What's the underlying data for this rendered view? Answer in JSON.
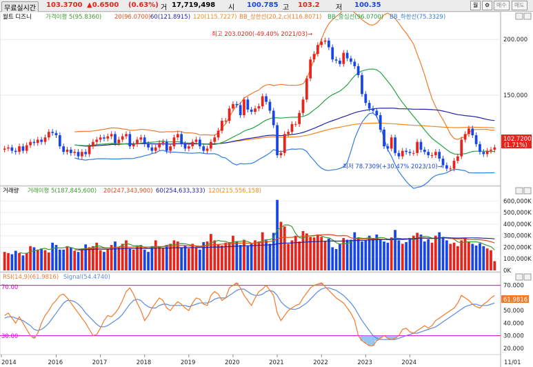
{
  "header": {
    "mode": "무료실시간",
    "price": "103.3700",
    "change": "▲0.6500",
    "change_pct": "(0.63%)",
    "vol_label": "거",
    "volume": "17,719,498",
    "open_label": "시",
    "open": "100.785",
    "high_label": "고",
    "high": "103.2",
    "low_label": "저",
    "low": "100.35",
    "btn_period": "월",
    "btn_gear": "⚙",
    "btn_buy": "매수",
    "btn_sell": "매도"
  },
  "price_panel": {
    "name": "월트 디즈니",
    "ma5": "가격이평 5(95.8360)",
    "ma20": "20(96.0700)",
    "ma60": "60(121.8915)",
    "ma120": "120(115.7227)",
    "bb_up": "BB_상한선(20,2,c)(116.8071)",
    "bb_mid": "BB_중심선(96.0700)",
    "bb_low": "BB_하한선(75.3329)",
    "high_note": "최고 203.0200(-49.40% 2021/03)→",
    "low_note": "최저 78.7309(+30.47% 2023/10)→",
    "last_tag": "102.7200",
    "last_tag_pct": "(1.71%)",
    "y_ticks": [
      {
        "v": 200,
        "t": "200.000"
      },
      {
        "v": 150,
        "t": "150.000"
      }
    ]
  },
  "volume_panel": {
    "title": "거래량",
    "ma5": "거래이평 5(187,845,600)",
    "ma20": "20(247,343,900)",
    "ma60": "60(254,633,333)",
    "ma120": "120(215,556,158)",
    "y_ticks": [
      {
        "v": 600,
        "t": "600,000K"
      },
      {
        "v": 500,
        "t": "500,000K"
      },
      {
        "v": 400,
        "t": "400,000K"
      },
      {
        "v": 300,
        "t": "300,000K"
      },
      {
        "v": 200,
        "t": "200,000K"
      },
      {
        "v": 100,
        "t": "100,000K"
      },
      {
        "v": 0,
        "t": "0K"
      }
    ]
  },
  "rsi_panel": {
    "rsi": "RSI(14,9)(61.9816)",
    "signal": "Signal(54.4740)",
    "level70": "70.00",
    "level30": "30.00",
    "last_tag": "61.9816",
    "y_ticks": [
      {
        "v": 70,
        "t": "70.000"
      },
      {
        "v": 60,
        "t": "60.000"
      },
      {
        "v": 50,
        "t": "50.000"
      },
      {
        "v": 40,
        "t": "40.000"
      },
      {
        "v": 30,
        "t": "30.000"
      },
      {
        "v": 20,
        "t": "20.000"
      }
    ]
  },
  "x_labels": [
    {
      "x": 2014,
      "t": "2014"
    },
    {
      "x": 2016,
      "t": "2016"
    },
    {
      "x": 2017,
      "t": "2017"
    },
    {
      "x": 2018,
      "t": "2018"
    },
    {
      "x": 2019,
      "t": "2019"
    },
    {
      "x": 2020,
      "t": "2020"
    },
    {
      "x": 2021,
      "t": "2021"
    },
    {
      "x": 2022,
      "t": "2022"
    },
    {
      "x": 2023,
      "t": "2023"
    },
    {
      "x": 2024,
      "t": "2024"
    }
  ],
  "x_last_label": "11/01",
  "colors": {
    "up": "#e8231b",
    "down": "#1846e6",
    "ma5": "#3c9a2c",
    "ma20": "#e24a18",
    "ma60": "#2222a8",
    "ma120": "#f08a20",
    "bbup": "#f07a2a",
    "bbmid": "#22a43c",
    "bblow": "#2f7ce0",
    "rsi": "#f07a2a",
    "signal": "#5a8ae0",
    "level": "#d400d4"
  },
  "chart_data": [
    {
      "type": "candlestick",
      "title": "월트 디즈니",
      "interval": "monthly",
      "ylim": [
        70,
        215
      ],
      "x_start": "2014-11",
      "closes": [
        102,
        103,
        100,
        99,
        104,
        100,
        105,
        108,
        107,
        110,
        108,
        112,
        117,
        116,
        114,
        104,
        99,
        101,
        98,
        99,
        95,
        99,
        97,
        104,
        108,
        110,
        112,
        111,
        113,
        115,
        107,
        110,
        113,
        115,
        104,
        106,
        110,
        112,
        106,
        103,
        100,
        103,
        107,
        108,
        100,
        104,
        112,
        115,
        106,
        102,
        104,
        108,
        110,
        104,
        100,
        102,
        108,
        112,
        118,
        127,
        127,
        138,
        142,
        141,
        132,
        146,
        137,
        135,
        138,
        140,
        149,
        144,
        136,
        123,
        96,
        98,
        115,
        117,
        124,
        124,
        134,
        146,
        165,
        182,
        187,
        195,
        198,
        199,
        193,
        182,
        181,
        178,
        188,
        183,
        180,
        176,
        168,
        151,
        143,
        138,
        136,
        132,
        119,
        104,
        102,
        112,
        98,
        95,
        100,
        99,
        98,
        98,
        108,
        101,
        99,
        96,
        96,
        99,
        93,
        87,
        84,
        84,
        91,
        95,
        110,
        115,
        120,
        114,
        106,
        99,
        97,
        100,
        101,
        103
      ],
      "wicks": "each candle has a thin high-low line; values not individually labelled",
      "ma_lines": [
        "BB_상한선",
        "BB_중심선",
        "BB_하한선",
        "20",
        "60",
        "120"
      ]
    },
    {
      "type": "bar",
      "title": "거래량",
      "ylim": [
        0,
        650
      ],
      "unit": "K shares",
      "values": [
        160,
        150,
        140,
        170,
        150,
        130,
        150,
        210,
        200,
        180,
        190,
        175,
        155,
        240,
        220,
        180,
        180,
        210,
        200,
        170,
        160,
        190,
        225,
        200,
        210,
        240,
        175,
        160,
        185,
        220,
        250,
        200,
        230,
        260,
        190,
        180,
        210,
        220,
        180,
        160,
        210,
        260,
        200,
        195,
        220,
        230,
        260,
        250,
        200,
        215,
        190,
        230,
        200,
        180,
        245,
        250,
        315,
        260,
        225,
        215,
        240,
        245,
        300,
        250,
        220,
        265,
        210,
        230,
        260,
        250,
        330,
        260,
        230,
        325,
        610,
        420,
        380,
        230,
        260,
        300,
        250,
        340,
        320,
        290,
        285,
        310,
        290,
        250,
        275,
        200,
        185,
        230,
        280,
        265,
        265,
        330,
        280,
        250,
        260,
        300,
        280,
        310,
        270,
        250,
        240,
        285,
        350,
        260,
        230,
        245,
        280,
        300,
        325,
        310,
        250,
        270,
        240,
        300,
        330,
        290,
        260,
        230,
        240,
        210,
        260,
        280,
        250,
        230,
        215,
        235,
        210,
        190,
        175,
        80
      ]
    },
    {
      "type": "line",
      "title": "RSI(14,9)",
      "ylim": [
        15,
        78
      ],
      "series": [
        {
          "name": "RSI(14,9)",
          "values": [
            46,
            48,
            44,
            40,
            45,
            40,
            35,
            30,
            28,
            32,
            40,
            46,
            50,
            55,
            58,
            62,
            63,
            60,
            56,
            52,
            48,
            44,
            40,
            35,
            30,
            31,
            36,
            42,
            46,
            45,
            48,
            52,
            58,
            65,
            68,
            63,
            56,
            50,
            42,
            46,
            52,
            56,
            60,
            58,
            52,
            50,
            54,
            57,
            55,
            52,
            50,
            56,
            60,
            59,
            55,
            54,
            62,
            65,
            63,
            58,
            60,
            68,
            70,
            72,
            68,
            62,
            58,
            54,
            60,
            65,
            67,
            70,
            66,
            62,
            48,
            42,
            46,
            50,
            52,
            54,
            55,
            60,
            64,
            68,
            70,
            71,
            72,
            69,
            66,
            63,
            60,
            58,
            56,
            52,
            48,
            42,
            30,
            26,
            24,
            22,
            22,
            26,
            28,
            30,
            28,
            27,
            28,
            30,
            35,
            36,
            33,
            32,
            34,
            36,
            38,
            36,
            38,
            42,
            44,
            46,
            48,
            50,
            52,
            56,
            62,
            60,
            58,
            55,
            53,
            52,
            55,
            57,
            60,
            62
          ]
        },
        {
          "name": "Signal",
          "values": [
            44,
            45,
            45,
            44,
            43,
            42,
            40,
            38,
            35,
            34,
            35,
            37,
            40,
            44,
            48,
            52,
            56,
            58,
            58,
            57,
            55,
            52,
            48,
            45,
            42,
            39,
            37,
            37,
            38,
            40,
            42,
            44,
            47,
            51,
            55,
            58,
            59,
            58,
            55,
            53,
            52,
            52,
            54,
            55,
            55,
            54,
            54,
            54,
            54,
            54,
            53,
            54,
            55,
            56,
            56,
            56,
            57,
            59,
            60,
            60,
            60,
            62,
            64,
            66,
            67,
            67,
            65,
            63,
            62,
            62,
            63,
            65,
            66,
            65,
            62,
            57,
            54,
            52,
            51,
            51,
            52,
            54,
            56,
            59,
            62,
            65,
            67,
            68,
            68,
            67,
            66,
            64,
            62,
            59,
            56,
            52,
            47,
            42,
            38,
            34,
            30,
            28,
            27,
            27,
            27,
            27,
            27,
            28,
            29,
            30,
            31,
            32,
            32,
            33,
            34,
            35,
            36,
            37,
            39,
            41,
            43,
            45,
            47,
            49,
            51,
            53,
            54,
            55,
            55,
            54,
            54,
            54,
            55,
            56
          ]
        }
      ],
      "levels": [
        70,
        30
      ]
    }
  ]
}
